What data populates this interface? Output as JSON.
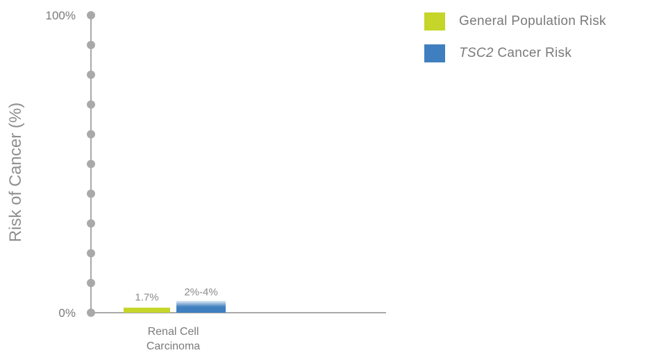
{
  "chart_data": {
    "type": "bar",
    "ylabel": "Risk of Cancer (%)",
    "ylim": [
      0,
      100
    ],
    "y_tick_labels": [
      "0%",
      "100%"
    ],
    "y_tick_count": 11,
    "categories": [
      "Renal Cell Carcinoma"
    ],
    "category_label_lines": [
      [
        "Renal Cell",
        "Carcinoma"
      ]
    ],
    "series": [
      {
        "name": "General Population Risk",
        "values": [
          1.7
        ],
        "labels": [
          "1.7%"
        ],
        "color": "#c5d52a"
      },
      {
        "name": "TSC2 Cancer Risk",
        "name_italic": "TSC2",
        "name_rest": " Cancer Risk",
        "range": [
          [
            2,
            4
          ]
        ],
        "values": [
          4
        ],
        "labels": [
          "2%-4%"
        ],
        "color": "#3f7fbf"
      }
    ],
    "grid": false,
    "legend_position": "top-right"
  }
}
